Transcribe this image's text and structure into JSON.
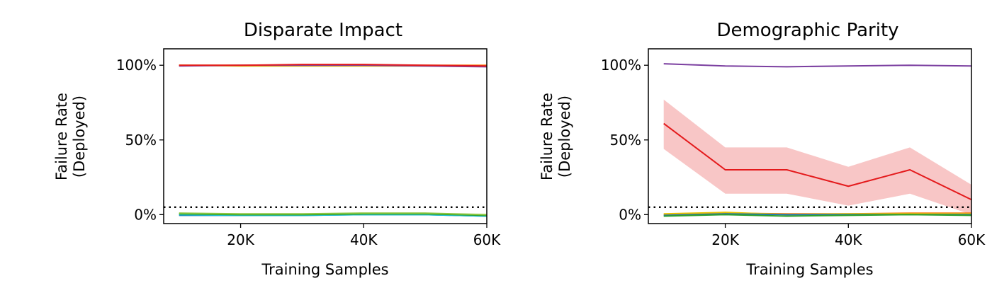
{
  "chart_data": [
    {
      "type": "line",
      "title": "Disparate Impact",
      "xlabel": "Training Samples",
      "ylabel": [
        "Failure Rate",
        "(Deployed)"
      ],
      "xlim": [
        7500,
        60000
      ],
      "ylim": [
        -0.06,
        1.11
      ],
      "xticks": [
        20000,
        40000,
        60000
      ],
      "xtick_labels": [
        "20K",
        "40K",
        "60K"
      ],
      "yticks": [
        0,
        0.5,
        1
      ],
      "ytick_labels": [
        "0%",
        "50%",
        "100%"
      ],
      "threshold": 0.05,
      "x": [
        10000,
        20000,
        30000,
        40000,
        50000,
        60000
      ],
      "series": [
        {
          "color": "#ff7f0e",
          "values": [
            1.0,
            1.0,
            1.0,
            1.0,
            1.0,
            1.0
          ]
        },
        {
          "color": "#e8c000",
          "values": [
            1.0,
            0.995,
            0.995,
            0.995,
            0.995,
            0.995
          ]
        },
        {
          "color": "#7b3fa0",
          "values": [
            0.995,
            1.0,
            1.0,
            1.0,
            0.995,
            0.99
          ]
        },
        {
          "color": "#e41a1c",
          "values": [
            1.0,
            1.0,
            1.005,
            1.005,
            1.0,
            0.995
          ]
        },
        {
          "color": "#1f77b4",
          "values": [
            -0.005,
            -0.005,
            -0.005,
            0.0,
            0.0,
            -0.01
          ]
        },
        {
          "color": "#17becf",
          "values": [
            0.0,
            -0.005,
            -0.005,
            0.0,
            0.0,
            -0.01
          ]
        },
        {
          "color": "#2ca02c",
          "values": [
            0.005,
            0.0,
            0.0,
            0.005,
            0.005,
            -0.005
          ]
        },
        {
          "color": "#8cc63f",
          "values": [
            0.01,
            0.005,
            0.005,
            0.01,
            0.01,
            0.0
          ]
        }
      ]
    },
    {
      "type": "line",
      "title": "Demographic Parity",
      "xlabel": "Training Samples",
      "ylabel": [
        "Failure Rate",
        "(Deployed)"
      ],
      "xlim": [
        7500,
        60000
      ],
      "ylim": [
        -0.06,
        1.11
      ],
      "xticks": [
        20000,
        40000,
        60000
      ],
      "xtick_labels": [
        "20K",
        "40K",
        "60K"
      ],
      "yticks": [
        0,
        0.5,
        1
      ],
      "ytick_labels": [
        "0%",
        "50%",
        "100%"
      ],
      "threshold": 0.05,
      "x": [
        10000,
        20000,
        30000,
        40000,
        50000,
        60000
      ],
      "series": [
        {
          "color": "#7b3fa0",
          "values": [
            1.01,
            0.995,
            0.99,
            0.995,
            1.0,
            0.995
          ]
        },
        {
          "color": "#e41a1c",
          "values": [
            0.61,
            0.3,
            0.3,
            0.19,
            0.3,
            0.1
          ],
          "band_lower": [
            0.44,
            0.14,
            0.14,
            0.06,
            0.14,
            0.0
          ],
          "band_upper": [
            0.77,
            0.45,
            0.45,
            0.32,
            0.45,
            0.2
          ]
        },
        {
          "color": "#ff7f0e",
          "values": [
            0.0,
            0.01,
            0.005,
            0.005,
            0.01,
            0.01
          ]
        },
        {
          "color": "#e8c000",
          "values": [
            0.005,
            0.015,
            0.0,
            0.005,
            0.005,
            0.005
          ]
        },
        {
          "color": "#1f77b4",
          "values": [
            -0.005,
            0.005,
            0.0,
            0.0,
            0.0,
            0.0
          ]
        },
        {
          "color": "#2ca02c",
          "values": [
            -0.01,
            0.0,
            -0.01,
            -0.005,
            0.0,
            -0.005
          ]
        }
      ]
    }
  ]
}
